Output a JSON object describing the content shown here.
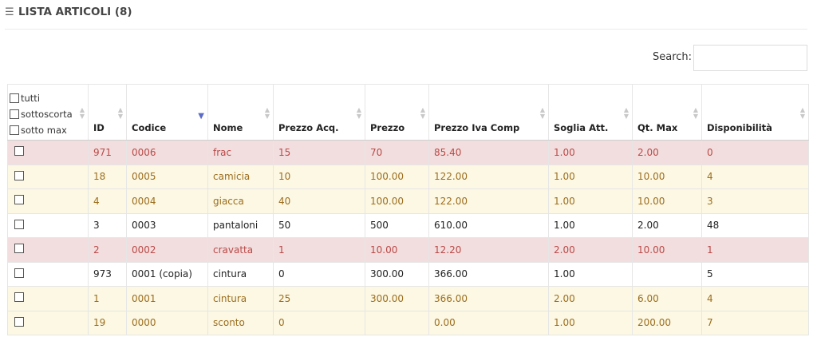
{
  "header": {
    "icon": "list-icon",
    "title": "LISTA ARTICOLI (8)"
  },
  "search": {
    "label": "Search:",
    "value": "",
    "placeholder": ""
  },
  "filters": [
    "tutti",
    "sottoscorta",
    "sotto max"
  ],
  "columns": [
    "ID",
    "Codice",
    "Nome",
    "Prezzo Acq.",
    "Prezzo",
    "Prezzo Iva Comp",
    "Soglia Att.",
    "Qt. Max",
    "Disponibilità"
  ],
  "sorted_column": "Codice",
  "rows": [
    {
      "status": "red",
      "id": "971",
      "codice": "0006",
      "nome": "frac",
      "prezzo_acq": "15",
      "prezzo": "70",
      "prezzo_iva": "85.40",
      "soglia": "1.00",
      "qt_max": "2.00",
      "disp": "0"
    },
    {
      "status": "yellow",
      "id": "18",
      "codice": "0005",
      "nome": "camicia",
      "prezzo_acq": "10",
      "prezzo": "100.00",
      "prezzo_iva": "122.00",
      "soglia": "1.00",
      "qt_max": "10.00",
      "disp": "4"
    },
    {
      "status": "yellow",
      "id": "4",
      "codice": "0004",
      "nome": "giacca",
      "prezzo_acq": "40",
      "prezzo": "100.00",
      "prezzo_iva": "122.00",
      "soglia": "1.00",
      "qt_max": "10.00",
      "disp": "3"
    },
    {
      "status": "white",
      "id": "3",
      "codice": "0003",
      "nome": "pantaloni",
      "prezzo_acq": "50",
      "prezzo": "500",
      "prezzo_iva": "610.00",
      "soglia": "1.00",
      "qt_max": "2.00",
      "disp": "48"
    },
    {
      "status": "red",
      "id": "2",
      "codice": "0002",
      "nome": "cravatta",
      "prezzo_acq": "1",
      "prezzo": "10.00",
      "prezzo_iva": "12.20",
      "soglia": "2.00",
      "qt_max": "10.00",
      "disp": "1"
    },
    {
      "status": "white",
      "id": "973",
      "codice": "0001 (copia)",
      "nome": "cintura",
      "prezzo_acq": "0",
      "prezzo": "300.00",
      "prezzo_iva": "366.00",
      "soglia": "1.00",
      "qt_max": "",
      "disp": "5"
    },
    {
      "status": "yellow",
      "id": "1",
      "codice": "0001",
      "nome": "cintura",
      "prezzo_acq": "25",
      "prezzo": "300.00",
      "prezzo_iva": "366.00",
      "soglia": "2.00",
      "qt_max": "6.00",
      "disp": "4"
    },
    {
      "status": "yellow",
      "id": "19",
      "codice": "0000",
      "nome": "sconto",
      "prezzo_acq": "0",
      "prezzo": "",
      "prezzo_iva": "0.00",
      "soglia": "1.00",
      "qt_max": "200.00",
      "disp": "7"
    }
  ],
  "colors": {
    "red_row_bg": "#f2dede",
    "red_row_text": "#b94a48",
    "yellow_row_bg": "#fcf8e3",
    "yellow_row_text": "#9c6d1e",
    "sort_active": "#5b6bc8"
  }
}
